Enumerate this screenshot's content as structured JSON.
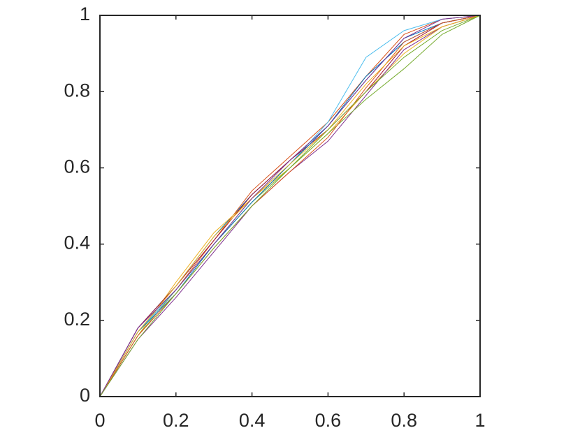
{
  "chart_data": {
    "type": "line",
    "x": [
      0,
      0.1,
      0.2,
      0.3,
      0.4,
      0.5,
      0.6,
      0.7,
      0.8,
      0.9,
      1
    ],
    "series": [
      {
        "color": "#0072BD",
        "values": [
          0,
          0.18,
          0.29,
          0.42,
          0.53,
          0.62,
          0.71,
          0.83,
          0.94,
          0.98,
          1
        ]
      },
      {
        "color": "#D95319",
        "values": [
          0,
          0.17,
          0.28,
          0.41,
          0.54,
          0.63,
          0.72,
          0.84,
          0.95,
          0.99,
          1
        ]
      },
      {
        "color": "#EDB120",
        "values": [
          0,
          0.16,
          0.3,
          0.43,
          0.52,
          0.6,
          0.69,
          0.8,
          0.9,
          0.97,
          1
        ]
      },
      {
        "color": "#7E2F8E",
        "values": [
          0,
          0.15,
          0.26,
          0.38,
          0.5,
          0.59,
          0.67,
          0.79,
          0.91,
          0.97,
          1
        ]
      },
      {
        "color": "#77AC30",
        "values": [
          0,
          0.16,
          0.28,
          0.4,
          0.51,
          0.6,
          0.69,
          0.78,
          0.86,
          0.95,
          1
        ]
      },
      {
        "color": "#4DBEEE",
        "values": [
          0,
          0.17,
          0.28,
          0.4,
          0.52,
          0.61,
          0.72,
          0.89,
          0.96,
          0.99,
          1
        ]
      },
      {
        "color": "#A2142F",
        "values": [
          0,
          0.18,
          0.29,
          0.41,
          0.53,
          0.62,
          0.7,
          0.8,
          0.92,
          0.98,
          1
        ]
      },
      {
        "color": "#0072BD",
        "values": [
          0,
          0.17,
          0.27,
          0.4,
          0.51,
          0.61,
          0.71,
          0.84,
          0.93,
          0.98,
          1
        ]
      },
      {
        "color": "#D95319",
        "values": [
          0,
          0.16,
          0.27,
          0.39,
          0.5,
          0.59,
          0.68,
          0.81,
          0.93,
          0.98,
          1
        ]
      },
      {
        "color": "#EDB120",
        "values": [
          0,
          0.17,
          0.29,
          0.42,
          0.52,
          0.61,
          0.7,
          0.82,
          0.92,
          0.97,
          1
        ]
      },
      {
        "color": "#7E2F8E",
        "values": [
          0,
          0.18,
          0.28,
          0.4,
          0.52,
          0.62,
          0.71,
          0.83,
          0.94,
          0.99,
          1
        ]
      },
      {
        "color": "#77AC30",
        "values": [
          0,
          0.15,
          0.27,
          0.39,
          0.5,
          0.6,
          0.7,
          0.8,
          0.89,
          0.96,
          1
        ]
      }
    ],
    "xlim": [
      0,
      1
    ],
    "ylim": [
      0,
      1
    ],
    "xticks": [
      0,
      0.2,
      0.4,
      0.6,
      0.8,
      1
    ],
    "yticks": [
      0,
      0.2,
      0.4,
      0.6,
      0.8,
      1
    ],
    "grid": false
  }
}
